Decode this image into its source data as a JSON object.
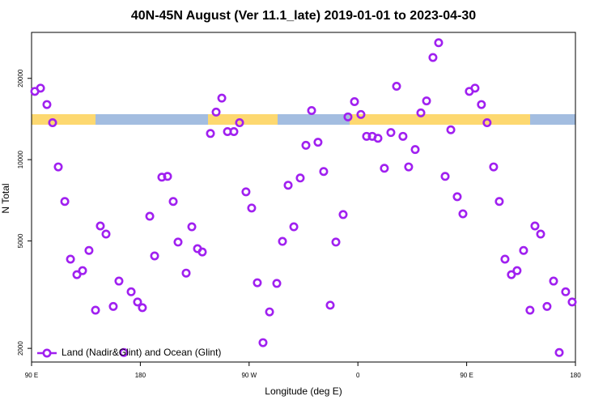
{
  "chart_data": {
    "type": "scatter",
    "title": "40N-45N August (Ver 11.1_late)   2019-01-01 to 2023-04-30",
    "x_label": "Longitude (deg E)",
    "y_label": "N Total",
    "y_log": true,
    "legend": "bottom-left",
    "xlim": [
      90,
      540
    ],
    "xticks": [
      {
        "value": 90,
        "label": "90 E"
      },
      {
        "value": 180,
        "label": "180"
      },
      {
        "value": 270,
        "label": "90 W"
      },
      {
        "value": 360,
        "label": "0"
      },
      {
        "value": 450,
        "label": "90 E"
      },
      {
        "value": 540,
        "label": "180"
      }
    ],
    "ylim": [
      1780,
      29600
    ],
    "yticks": [
      2000,
      5000,
      10000,
      20000
    ],
    "series": [
      {
        "name": "Land (Nadir&Glint) and Ocean (Glint)",
        "color": "#a020f0",
        "x": [
          92.7,
          97.4,
          102.7,
          107.4,
          112.1,
          117.5,
          122.2,
          127.5,
          132.2,
          137.5,
          142.9,
          146.9,
          151.6,
          157.6,
          162.3,
          166.3,
          172.4,
          177.7,
          181.7,
          187.8,
          191.8,
          197.8,
          202.5,
          207.2,
          211.2,
          217.9,
          222.6,
          227.3,
          231.3,
          238.0,
          242.7,
          247.4,
          252.1,
          257.4,
          262.1,
          267.4,
          272.1,
          276.8,
          281.5,
          286.9,
          292.9,
          297.6,
          302.3,
          307.0,
          312.3,
          317.0,
          321.7,
          327.0,
          331.7,
          337.1,
          341.8,
          347.8,
          351.8,
          357.2,
          362.5,
          367.2,
          371.9,
          376.6,
          381.9,
          387.3,
          392.0,
          397.3,
          402.0,
          407.4,
          412.1,
          416.8,
          422.1,
          426.8,
          432.2,
          436.9,
          442.2,
          446.9,
          452.2,
          456.9,
          462.2,
          466.9,
          472.3,
          477.0,
          481.7,
          487.0,
          491.7,
          497.1,
          502.4,
          506.5,
          511.2,
          516.5,
          521.9,
          526.6,
          531.9,
          537.3
        ],
        "values": [
          17900,
          18400,
          16000,
          13700,
          9400,
          7000,
          4280,
          3750,
          3880,
          4610,
          2770,
          5680,
          5300,
          2860,
          3550,
          1930,
          3240,
          2970,
          2830,
          6170,
          4400,
          8610,
          8670,
          7000,
          4950,
          3800,
          5640,
          4680,
          4550,
          12500,
          15000,
          16900,
          12700,
          12700,
          13700,
          7600,
          6620,
          3500,
          2100,
          2730,
          3480,
          4980,
          8040,
          5640,
          8550,
          11300,
          15200,
          11600,
          9040,
          2890,
          4950,
          6260,
          14400,
          16400,
          14700,
          12200,
          12200,
          12000,
          9290,
          12600,
          18700,
          12200,
          9400,
          10900,
          14900,
          16500,
          23900,
          27100,
          8670,
          12900,
          7290,
          6300,
          17900,
          18400,
          16000,
          13700,
          9400,
          7000,
          4280,
          3750,
          3880,
          4610,
          2770,
          5680,
          5300,
          2860,
          3550,
          1930,
          3240,
          2970
        ]
      }
    ]
  }
}
